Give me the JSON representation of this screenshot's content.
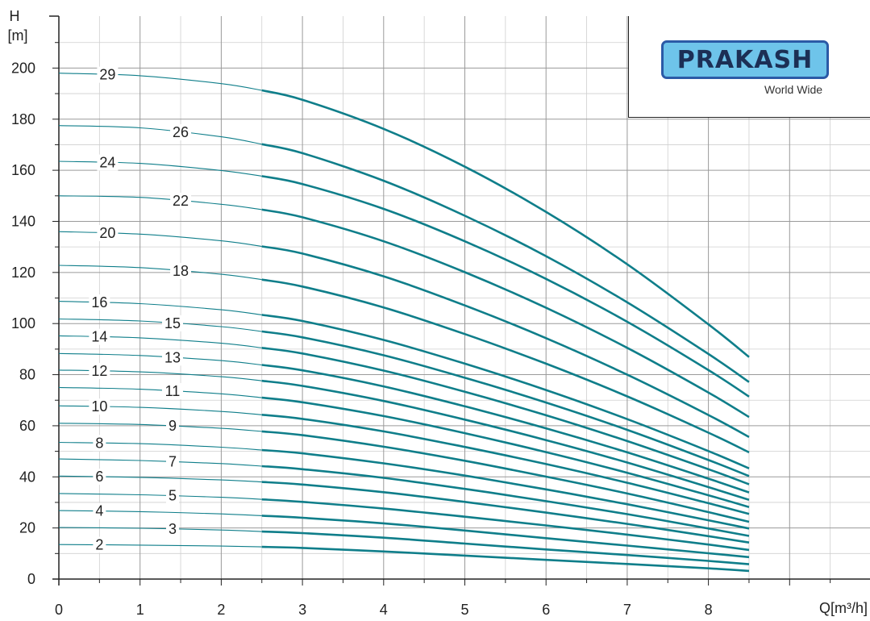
{
  "chart_data": {
    "type": "line",
    "title": "",
    "xlabel": "Q[m³/h]",
    "ylabel_top": "H",
    "ylabel_unit": "[m]",
    "xlim": [
      0,
      10
    ],
    "ylim": [
      0,
      210
    ],
    "x_ticks": [
      "0",
      "1",
      "2",
      "3",
      "4",
      "5",
      "6",
      "7",
      "8"
    ],
    "y_ticks": [
      "0",
      "20",
      "40",
      "60",
      "80",
      "100",
      "120",
      "140",
      "160",
      "180",
      "200"
    ],
    "grid": true,
    "line_color": "#0f7e8a",
    "thin_range": [
      0,
      2.5
    ],
    "thick_range": [
      2.5,
      8.5
    ],
    "x": [
      0,
      1,
      2,
      2.5,
      3,
      4,
      5,
      6,
      7,
      8,
      8.5
    ],
    "series": [
      {
        "name": "2",
        "label_x": 0.5,
        "values": [
          13.5,
          13.3,
          12.9,
          12.6,
          12.2,
          10.8,
          9.2,
          7.5,
          5.9,
          4.2,
          3.2
        ]
      },
      {
        "name": "3",
        "label_x": 1.4,
        "values": [
          20.2,
          19.9,
          19.2,
          18.6,
          18.0,
          16.2,
          13.9,
          11.6,
          9.4,
          7.1,
          5.8
        ]
      },
      {
        "name": "4",
        "label_x": 0.5,
        "values": [
          26.8,
          26.4,
          25.5,
          24.8,
          24.0,
          21.8,
          19.0,
          16.0,
          13.1,
          10.1,
          8.6
        ]
      },
      {
        "name": "5",
        "label_x": 1.4,
        "values": [
          33.5,
          33.0,
          32.0,
          31.2,
          30.2,
          27.6,
          24.4,
          21.0,
          17.4,
          13.5,
          11.4
        ]
      },
      {
        "name": "6",
        "label_x": 0.5,
        "values": [
          40.3,
          39.8,
          38.8,
          38.0,
          37.0,
          34.0,
          30.2,
          26.0,
          21.6,
          16.8,
          14.3
        ]
      },
      {
        "name": "7",
        "label_x": 1.4,
        "values": [
          47.0,
          46.4,
          45.2,
          44.2,
          43.0,
          39.6,
          35.3,
          30.5,
          25.4,
          19.8,
          16.9
        ]
      },
      {
        "name": "8",
        "label_x": 0.5,
        "values": [
          53.5,
          53.0,
          51.6,
          50.5,
          49.2,
          45.3,
          40.5,
          35.1,
          29.3,
          23.0,
          19.8
        ]
      },
      {
        "name": "9",
        "label_x": 1.4,
        "values": [
          61.0,
          60.5,
          59.0,
          57.8,
          56.3,
          51.8,
          46.3,
          40.1,
          33.5,
          26.2,
          22.4
        ]
      },
      {
        "name": "10",
        "label_x": 0.5,
        "values": [
          67.8,
          67.2,
          65.6,
          64.3,
          62.7,
          57.8,
          51.7,
          45.0,
          37.7,
          29.7,
          25.5
        ]
      },
      {
        "name": "11",
        "label_x": 1.4,
        "values": [
          75.0,
          74.3,
          72.5,
          71.0,
          69.2,
          63.8,
          57.1,
          49.7,
          41.6,
          32.8,
          28.2
        ]
      },
      {
        "name": "12",
        "label_x": 0.5,
        "values": [
          81.8,
          81.1,
          79.2,
          77.6,
          75.6,
          69.7,
          62.4,
          54.4,
          45.6,
          36.0,
          31.0
        ]
      },
      {
        "name": "13",
        "label_x": 1.4,
        "values": [
          88.3,
          87.5,
          85.5,
          83.8,
          81.7,
          75.4,
          67.6,
          59.0,
          49.6,
          39.3,
          33.9
        ]
      },
      {
        "name": "14",
        "label_x": 0.5,
        "values": [
          95.2,
          94.4,
          92.3,
          90.5,
          88.3,
          81.6,
          73.3,
          64.1,
          54.0,
          43.0,
          37.1
        ]
      },
      {
        "name": "15",
        "label_x": 1.4,
        "values": [
          101.8,
          101.0,
          98.8,
          96.9,
          94.6,
          87.6,
          78.8,
          69.1,
          58.4,
          46.6,
          40.3
        ]
      },
      {
        "name": "16",
        "label_x": 0.5,
        "values": [
          108.7,
          107.8,
          105.4,
          103.4,
          101.0,
          93.6,
          84.3,
          74.0,
          62.6,
          50.1,
          43.3
        ]
      },
      {
        "name": "18",
        "label_x": 1.5,
        "values": [
          122.8,
          121.9,
          119.3,
          117.2,
          114.5,
          106.3,
          95.9,
          84.3,
          71.5,
          57.3,
          49.6
        ]
      },
      {
        "name": "20",
        "label_x": 0.6,
        "values": [
          136.0,
          135.0,
          132.4,
          130.2,
          127.4,
          118.5,
          107.1,
          94.3,
          80.0,
          64.2,
          55.6
        ]
      },
      {
        "name": "22",
        "label_x": 1.5,
        "values": [
          150.0,
          149.4,
          146.7,
          144.6,
          141.6,
          132.2,
          120.1,
          106.2,
          90.5,
          73.0,
          63.4
        ]
      },
      {
        "name": "24",
        "label_x": 0.6,
        "values": [
          163.5,
          162.7,
          159.9,
          157.7,
          154.6,
          144.9,
          132.2,
          117.5,
          100.7,
          81.8,
          71.4
        ]
      },
      {
        "name": "26",
        "label_x": 1.5,
        "values": [
          177.5,
          176.6,
          173.1,
          170.2,
          166.7,
          155.9,
          142.2,
          126.4,
          108.3,
          88.1,
          77.1
        ]
      },
      {
        "name": "29",
        "label_x": 0.6,
        "values": [
          198.0,
          197.0,
          193.9,
          191.3,
          187.6,
          176.2,
          161.4,
          143.7,
          123.2,
          99.7,
          86.9
        ]
      }
    ]
  },
  "logo": {
    "brand": "PRAKASH",
    "tagline": "World Wide"
  }
}
